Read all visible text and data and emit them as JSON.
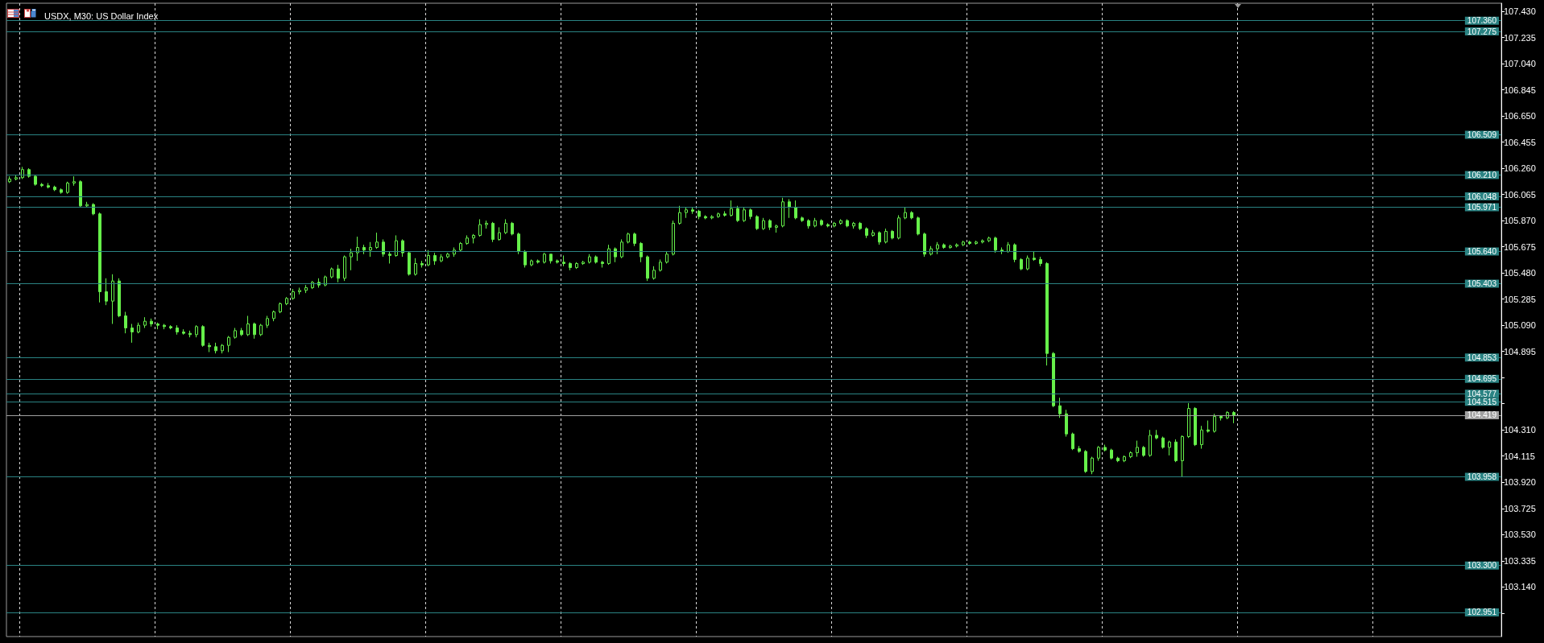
{
  "chart_data": {
    "type": "candlestick",
    "title": "USDX, M30: US Dollar Index",
    "color": "#66f04a",
    "grid": "x",
    "categories": [
      null,
      null,
      null,
      null,
      null,
      null,
      null,
      null,
      null,
      null,
      null,
      null,
      null,
      null,
      null,
      null,
      null,
      null,
      null,
      null,
      null,
      null,
      null,
      null,
      null,
      null,
      null,
      null,
      null,
      null,
      null,
      null,
      null,
      null,
      null,
      null,
      null,
      null,
      null,
      null,
      null,
      null,
      null,
      null,
      null,
      null,
      null,
      null,
      null,
      null,
      null,
      null,
      null,
      null,
      null,
      null,
      null,
      null,
      null,
      null,
      null,
      null,
      null,
      null,
      null,
      null,
      null,
      null,
      null,
      null,
      null,
      null,
      null,
      null,
      null,
      null,
      null,
      null,
      null,
      null,
      null,
      null,
      null,
      null,
      null,
      null,
      null,
      null,
      null,
      null,
      null,
      null,
      null,
      null,
      null,
      null,
      null,
      null,
      null,
      null,
      null,
      null,
      null,
      null,
      null,
      null,
      null,
      null,
      null,
      null,
      null,
      null,
      null,
      null,
      null,
      null,
      null,
      null,
      null,
      null,
      null,
      null,
      null,
      null,
      null,
      null,
      null,
      null,
      null,
      null,
      null,
      null,
      null,
      null,
      null,
      null,
      null,
      null,
      null,
      null,
      null,
      null,
      null,
      null,
      null,
      null,
      null,
      null,
      null,
      null,
      null,
      null,
      null,
      null,
      null,
      null,
      null,
      null,
      null,
      null,
      null,
      null,
      null,
      null,
      null,
      null,
      null,
      null,
      null,
      null,
      null,
      null,
      null,
      null,
      null,
      null,
      null,
      null,
      null,
      null,
      null,
      null,
      null,
      null,
      null,
      null,
      null,
      null,
      null,
      null,
      null,
      null,
      null,
      null,
      null,
      null,
      null,
      null,
      null,
      null,
      null,
      null,
      null,
      null,
      null,
      null,
      null,
      null,
      null,
      null,
      null,
      null,
      null,
      null,
      null,
      null,
      null,
      null,
      null,
      null,
      null,
      null,
      null,
      null,
      null,
      null,
      null,
      null,
      null,
      null,
      null,
      null
    ],
    "ohlc": [
      [
        106.16,
        106.2,
        106.15,
        106.18
      ],
      [
        106.18,
        106.21,
        106.17,
        106.19
      ],
      [
        106.19,
        106.27,
        106.18,
        106.25
      ],
      [
        106.25,
        106.26,
        106.19,
        106.2
      ],
      [
        106.2,
        106.21,
        106.13,
        106.14
      ],
      [
        106.14,
        106.15,
        106.12,
        106.13
      ],
      [
        106.13,
        106.15,
        106.11,
        106.12
      ],
      [
        106.12,
        106.13,
        106.09,
        106.1
      ],
      [
        106.1,
        106.11,
        106.07,
        106.08
      ],
      [
        106.08,
        106.16,
        106.07,
        106.15
      ],
      [
        106.15,
        106.2,
        106.13,
        106.16
      ],
      [
        106.16,
        106.17,
        105.97,
        105.98
      ],
      [
        105.98,
        106.01,
        105.97,
        105.99
      ],
      [
        105.99,
        106.0,
        105.91,
        105.92
      ],
      [
        105.92,
        105.93,
        105.26,
        105.34
      ],
      [
        105.34,
        105.44,
        105.24,
        105.27
      ],
      [
        105.27,
        105.47,
        105.1,
        105.42
      ],
      [
        105.42,
        105.44,
        105.15,
        105.16
      ],
      [
        105.16,
        105.19,
        105.03,
        105.07
      ],
      [
        105.07,
        105.1,
        104.96,
        105.04
      ],
      [
        105.04,
        105.11,
        105.03,
        105.09
      ],
      [
        105.09,
        105.15,
        105.07,
        105.12
      ],
      [
        105.12,
        105.14,
        105.08,
        105.1
      ],
      [
        105.1,
        105.11,
        105.06,
        105.09
      ],
      [
        105.09,
        105.1,
        105.06,
        105.08
      ],
      [
        105.08,
        105.09,
        105.06,
        105.07
      ],
      [
        105.07,
        105.09,
        105.02,
        105.04
      ],
      [
        105.04,
        105.06,
        105.02,
        105.03
      ],
      [
        105.03,
        105.05,
        105.0,
        105.02
      ],
      [
        105.02,
        105.09,
        105.0,
        105.08
      ],
      [
        105.08,
        105.09,
        104.93,
        104.94
      ],
      [
        104.94,
        104.96,
        104.89,
        104.93
      ],
      [
        104.93,
        104.96,
        104.88,
        104.9
      ],
      [
        104.9,
        104.95,
        104.88,
        104.94
      ],
      [
        104.94,
        105.01,
        104.89,
        105.0
      ],
      [
        105.0,
        105.07,
        104.99,
        105.05
      ],
      [
        105.05,
        105.07,
        105.01,
        105.02
      ],
      [
        105.02,
        105.16,
        105.01,
        105.1
      ],
      [
        105.1,
        105.11,
        104.99,
        105.02
      ],
      [
        105.02,
        105.1,
        105.01,
        105.09
      ],
      [
        105.09,
        105.16,
        105.07,
        105.14
      ],
      [
        105.14,
        105.2,
        105.12,
        105.19
      ],
      [
        105.19,
        105.26,
        105.18,
        105.25
      ],
      [
        105.25,
        105.3,
        105.24,
        105.29
      ],
      [
        105.29,
        105.36,
        105.28,
        105.34
      ],
      [
        105.34,
        105.37,
        105.32,
        105.35
      ],
      [
        105.35,
        105.39,
        105.33,
        105.37
      ],
      [
        105.37,
        105.42,
        105.36,
        105.41
      ],
      [
        105.41,
        105.44,
        105.37,
        105.39
      ],
      [
        105.39,
        105.46,
        105.38,
        105.45
      ],
      [
        105.45,
        105.52,
        105.44,
        105.51
      ],
      [
        105.51,
        105.54,
        105.41,
        105.44
      ],
      [
        105.44,
        105.61,
        105.42,
        105.6
      ],
      [
        105.6,
        105.66,
        105.5,
        105.63
      ],
      [
        105.63,
        105.75,
        105.57,
        105.67
      ],
      [
        105.67,
        105.69,
        105.62,
        105.65
      ],
      [
        105.65,
        105.71,
        105.6,
        105.67
      ],
      [
        105.67,
        105.78,
        105.66,
        105.71
      ],
      [
        105.71,
        105.73,
        105.6,
        105.62
      ],
      [
        105.62,
        105.64,
        105.55,
        105.61
      ],
      [
        105.61,
        105.76,
        105.6,
        105.72
      ],
      [
        105.72,
        105.73,
        105.6,
        105.63
      ],
      [
        105.63,
        105.64,
        105.46,
        105.47
      ],
      [
        105.47,
        105.59,
        105.46,
        105.55
      ],
      [
        105.55,
        105.57,
        105.52,
        105.54
      ],
      [
        105.54,
        105.65,
        105.53,
        105.61
      ],
      [
        105.61,
        105.63,
        105.54,
        105.57
      ],
      [
        105.57,
        105.62,
        105.56,
        105.6
      ],
      [
        105.6,
        105.63,
        105.59,
        105.62
      ],
      [
        105.62,
        105.67,
        105.6,
        105.65
      ],
      [
        105.65,
        105.71,
        105.64,
        105.7
      ],
      [
        105.7,
        105.76,
        105.69,
        105.74
      ],
      [
        105.74,
        105.77,
        105.7,
        105.76
      ],
      [
        105.76,
        105.88,
        105.75,
        105.84
      ],
      [
        105.84,
        105.87,
        105.81,
        105.85
      ],
      [
        105.85,
        105.86,
        105.71,
        105.73
      ],
      [
        105.73,
        105.82,
        105.72,
        105.78
      ],
      [
        105.78,
        105.88,
        105.77,
        105.85
      ],
      [
        105.85,
        105.86,
        105.76,
        105.77
      ],
      [
        105.77,
        105.78,
        105.62,
        105.64
      ],
      [
        105.64,
        105.65,
        105.52,
        105.54
      ],
      [
        105.54,
        105.58,
        105.53,
        105.57
      ],
      [
        105.57,
        105.58,
        105.55,
        105.56
      ],
      [
        105.56,
        105.63,
        105.55,
        105.62
      ],
      [
        105.62,
        105.62,
        105.55,
        105.57
      ],
      [
        105.57,
        105.58,
        105.55,
        105.56
      ],
      [
        105.56,
        105.61,
        105.53,
        105.55
      ],
      [
        105.55,
        105.56,
        105.5,
        105.52
      ],
      [
        105.52,
        105.56,
        105.51,
        105.55
      ],
      [
        105.55,
        105.57,
        105.54,
        105.56
      ],
      [
        105.56,
        105.62,
        105.55,
        105.6
      ],
      [
        105.6,
        105.61,
        105.55,
        105.56
      ],
      [
        105.56,
        105.57,
        105.52,
        105.55
      ],
      [
        105.55,
        105.69,
        105.54,
        105.66
      ],
      [
        105.66,
        105.67,
        105.56,
        105.6
      ],
      [
        105.6,
        105.73,
        105.59,
        105.71
      ],
      [
        105.71,
        105.78,
        105.7,
        105.77
      ],
      [
        105.77,
        105.78,
        105.68,
        105.7
      ],
      [
        105.7,
        105.71,
        105.56,
        105.6
      ],
      [
        105.6,
        105.61,
        105.42,
        105.44
      ],
      [
        105.44,
        105.53,
        105.43,
        105.5
      ],
      [
        105.5,
        105.58,
        105.49,
        105.56
      ],
      [
        105.56,
        105.64,
        105.55,
        105.62
      ],
      [
        105.62,
        105.87,
        105.61,
        105.85
      ],
      [
        105.85,
        105.98,
        105.84,
        105.93
      ],
      [
        105.93,
        105.97,
        105.89,
        105.95
      ],
      [
        105.95,
        105.97,
        105.92,
        105.94
      ],
      [
        105.94,
        105.95,
        105.88,
        105.9
      ],
      [
        105.9,
        105.91,
        105.88,
        105.89
      ],
      [
        105.89,
        105.91,
        105.88,
        105.9
      ],
      [
        105.9,
        105.93,
        105.89,
        105.92
      ],
      [
        105.92,
        105.94,
        105.9,
        105.91
      ],
      [
        105.91,
        106.02,
        105.9,
        105.96
      ],
      [
        105.96,
        105.98,
        105.86,
        105.87
      ],
      [
        105.87,
        105.97,
        105.86,
        105.95
      ],
      [
        105.95,
        105.96,
        105.88,
        105.9
      ],
      [
        105.9,
        105.91,
        105.8,
        105.81
      ],
      [
        105.81,
        105.89,
        105.8,
        105.87
      ],
      [
        105.87,
        105.88,
        105.8,
        105.82
      ],
      [
        105.82,
        105.84,
        105.78,
        105.83
      ],
      [
        105.83,
        106.04,
        105.82,
        106.01
      ],
      [
        106.01,
        106.03,
        105.89,
        105.97
      ],
      [
        105.97,
        106.02,
        105.88,
        105.89
      ],
      [
        105.89,
        105.9,
        105.86,
        105.87
      ],
      [
        105.87,
        105.88,
        105.81,
        105.83
      ],
      [
        105.83,
        105.89,
        105.82,
        105.87
      ],
      [
        105.87,
        105.88,
        105.83,
        105.84
      ],
      [
        105.84,
        105.85,
        105.82,
        105.83
      ],
      [
        105.83,
        105.86,
        105.82,
        105.85
      ],
      [
        105.85,
        105.88,
        105.84,
        105.87
      ],
      [
        105.87,
        105.88,
        105.82,
        105.83
      ],
      [
        105.83,
        105.86,
        105.81,
        105.85
      ],
      [
        105.85,
        105.86,
        105.8,
        105.81
      ],
      [
        105.81,
        105.82,
        105.74,
        105.76
      ],
      [
        105.76,
        105.8,
        105.75,
        105.78
      ],
      [
        105.78,
        105.79,
        105.69,
        105.71
      ],
      [
        105.71,
        105.81,
        105.7,
        105.79
      ],
      [
        105.79,
        105.8,
        105.73,
        105.74
      ],
      [
        105.74,
        105.91,
        105.73,
        105.89
      ],
      [
        105.89,
        105.97,
        105.88,
        105.93
      ],
      [
        105.93,
        105.94,
        105.88,
        105.89
      ],
      [
        105.89,
        105.9,
        105.76,
        105.77
      ],
      [
        105.77,
        105.78,
        105.6,
        105.62
      ],
      [
        105.62,
        105.68,
        105.61,
        105.66
      ],
      [
        105.66,
        105.71,
        105.62,
        105.69
      ],
      [
        105.69,
        105.7,
        105.66,
        105.67
      ],
      [
        105.67,
        105.69,
        105.66,
        105.68
      ],
      [
        105.68,
        105.7,
        105.67,
        105.69
      ],
      [
        105.69,
        105.72,
        105.68,
        105.71
      ],
      [
        105.71,
        105.72,
        105.69,
        105.7
      ],
      [
        105.7,
        105.72,
        105.69,
        105.71
      ],
      [
        105.71,
        105.73,
        105.7,
        105.72
      ],
      [
        105.72,
        105.75,
        105.71,
        105.74
      ],
      [
        105.74,
        105.75,
        105.63,
        105.65
      ],
      [
        105.65,
        105.67,
        105.62,
        105.64
      ],
      [
        105.64,
        105.71,
        105.63,
        105.69
      ],
      [
        105.69,
        105.7,
        105.56,
        105.58
      ],
      [
        105.58,
        105.59,
        105.5,
        105.51
      ],
      [
        105.51,
        105.61,
        105.5,
        105.59
      ],
      [
        105.59,
        105.64,
        105.57,
        105.58
      ],
      [
        105.58,
        105.6,
        105.53,
        105.55
      ],
      [
        105.55,
        105.56,
        104.79,
        104.88
      ],
      [
        104.88,
        104.89,
        104.48,
        104.49
      ],
      [
        104.49,
        104.55,
        104.4,
        104.43
      ],
      [
        104.43,
        104.46,
        104.26,
        104.28
      ],
      [
        104.28,
        104.29,
        104.16,
        104.17
      ],
      [
        104.17,
        104.19,
        104.14,
        104.15
      ],
      [
        104.15,
        104.16,
        103.99,
        104.0
      ],
      [
        104.0,
        104.11,
        103.98,
        104.1
      ],
      [
        104.1,
        104.19,
        104.08,
        104.18
      ],
      [
        104.18,
        104.2,
        104.15,
        104.16
      ],
      [
        104.16,
        104.17,
        104.09,
        104.1
      ],
      [
        104.1,
        104.11,
        104.07,
        104.08
      ],
      [
        104.08,
        104.12,
        104.07,
        104.11
      ],
      [
        104.11,
        104.15,
        104.1,
        104.14
      ],
      [
        104.14,
        104.23,
        104.11,
        104.18
      ],
      [
        104.18,
        104.19,
        104.11,
        104.12
      ],
      [
        104.12,
        104.31,
        104.11,
        104.27
      ],
      [
        104.27,
        104.31,
        104.24,
        104.25
      ],
      [
        104.25,
        104.26,
        104.17,
        104.18
      ],
      [
        104.18,
        104.23,
        104.12,
        104.22
      ],
      [
        104.22,
        104.24,
        104.07,
        104.08
      ],
      [
        104.08,
        104.27,
        103.96,
        104.26
      ],
      [
        104.26,
        104.51,
        104.25,
        104.47
      ],
      [
        104.47,
        104.48,
        104.19,
        104.2
      ],
      [
        104.2,
        104.34,
        104.17,
        104.31
      ],
      [
        104.31,
        104.38,
        104.29,
        104.3
      ],
      [
        104.3,
        104.43,
        104.29,
        104.41
      ],
      [
        104.41,
        104.42,
        104.38,
        104.4
      ],
      [
        104.4,
        104.45,
        104.39,
        104.44
      ],
      [
        104.44,
        104.45,
        104.36,
        104.42
      ],
      null,
      null,
      null,
      null,
      null,
      null,
      null,
      null,
      null,
      null,
      null,
      null,
      null,
      null,
      null,
      null,
      null,
      null,
      null,
      null,
      null,
      null,
      null,
      null,
      null,
      null,
      null,
      null,
      null,
      null,
      null,
      null,
      null,
      null,
      null,
      null,
      null,
      null,
      null,
      null,
      null
    ],
    "ylim": [
      102.77,
      107.49
    ],
    "yticks": [
      {
        "value": 102.945,
        "label": null
      },
      {
        "value": 103.14,
        "label": "103.140"
      },
      {
        "value": 103.335,
        "label": "103.335"
      },
      {
        "value": 103.53,
        "label": "103.530"
      },
      {
        "value": 103.725,
        "label": "103.725"
      },
      {
        "value": 103.92,
        "label": "103.920"
      },
      {
        "value": 104.115,
        "label": "104.115"
      },
      {
        "value": 104.31,
        "label": "104.310"
      },
      {
        "value": 104.505,
        "label": null
      },
      {
        "value": 104.7,
        "label": null
      },
      {
        "value": 104.895,
        "label": "104.895"
      },
      {
        "value": 105.09,
        "label": "105.090"
      },
      {
        "value": 105.285,
        "label": "105.285"
      },
      {
        "value": 105.48,
        "label": "105.480"
      },
      {
        "value": 105.675,
        "label": "105.675"
      },
      {
        "value": 105.87,
        "label": "105.870"
      },
      {
        "value": 106.065,
        "label": "106.065"
      },
      {
        "value": 106.26,
        "label": "106.260"
      },
      {
        "value": 106.455,
        "label": "106.455"
      },
      {
        "value": 106.65,
        "label": "106.650"
      },
      {
        "value": 106.845,
        "label": "106.845"
      },
      {
        "value": 107.04,
        "label": "107.040"
      },
      {
        "value": 107.235,
        "label": "107.235"
      },
      {
        "value": 107.43,
        "label": "107.430"
      }
    ],
    "ref_lines": [
      {
        "axis": "y",
        "value": 107.36,
        "label": "107.360",
        "color": "#2a8383"
      },
      {
        "axis": "y",
        "value": 107.275,
        "label": "107.275",
        "color": "#2a8383"
      },
      {
        "axis": "y",
        "value": 106.509,
        "label": "106.509",
        "color": "#2a8383"
      },
      {
        "axis": "y",
        "value": 106.21,
        "label": "106.210",
        "color": "#2a8383"
      },
      {
        "axis": "y",
        "value": 106.048,
        "label": "106.048",
        "color": "#2a8383"
      },
      {
        "axis": "y",
        "value": 105.971,
        "label": "105.971",
        "color": "#2a8383"
      },
      {
        "axis": "y",
        "value": 105.64,
        "label": "105.640",
        "color": "#2a8383"
      },
      {
        "axis": "y",
        "value": 105.403,
        "label": "105.403",
        "color": "#2a8383"
      },
      {
        "axis": "y",
        "value": 104.853,
        "label": "104.853",
        "color": "#2a8383"
      },
      {
        "axis": "y",
        "value": 104.695,
        "label": "104.695",
        "color": "#2a8383"
      },
      {
        "axis": "y",
        "value": 104.577,
        "label": "104.577",
        "color": "#2a8383"
      },
      {
        "axis": "y",
        "value": 104.515,
        "label": "104.515",
        "color": "#2a8383"
      },
      {
        "axis": "y",
        "value": 104.419,
        "label": "104.419",
        "color": "#a0a0a0"
      },
      {
        "axis": "y",
        "value": 103.958,
        "label": "103.958",
        "color": "#2a8383"
      },
      {
        "axis": "y",
        "value": 103.3,
        "label": "103.300",
        "color": "#2a8383"
      },
      {
        "axis": "y",
        "value": 102.951,
        "label": "102.951",
        "color": "#2a8383"
      }
    ]
  }
}
